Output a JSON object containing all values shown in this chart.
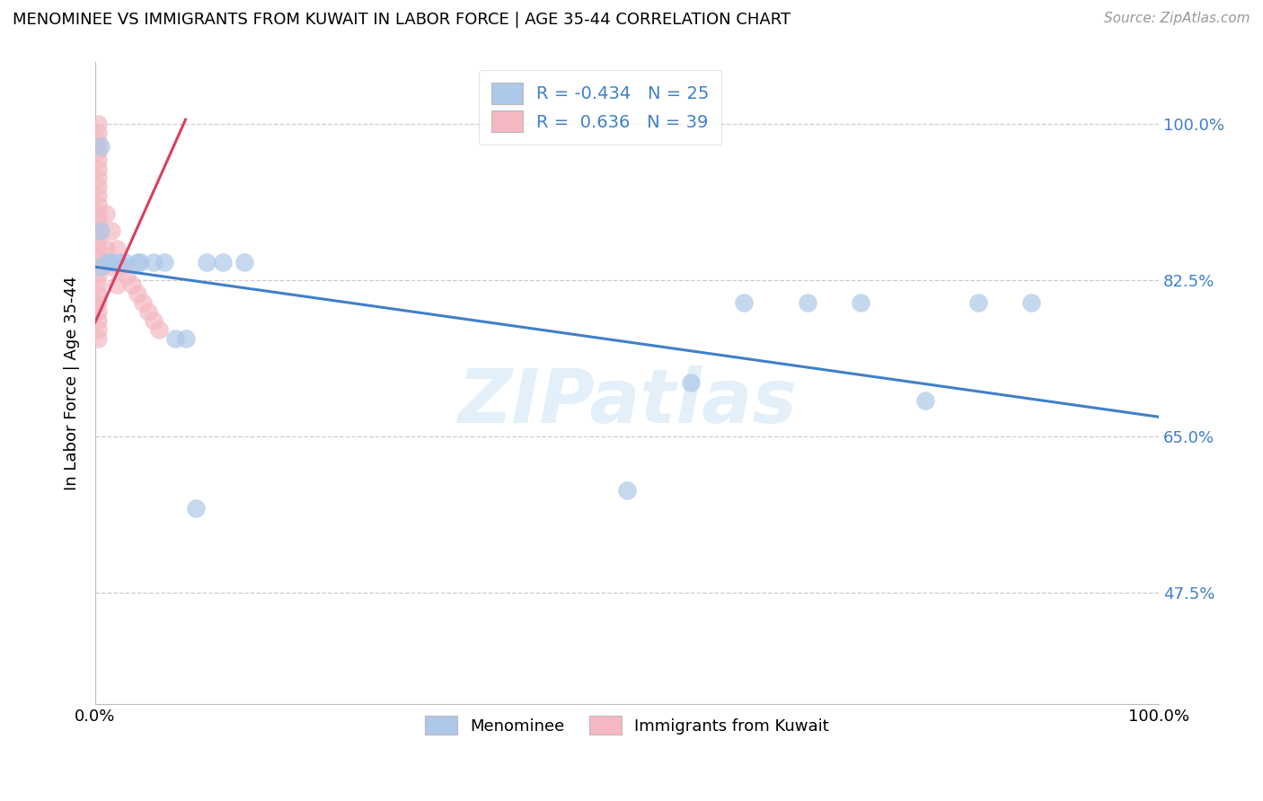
{
  "title": "MENOMINEE VS IMMIGRANTS FROM KUWAIT IN LABOR FORCE | AGE 35-44 CORRELATION CHART",
  "source_text": "Source: ZipAtlas.com",
  "ylabel": "In Labor Force | Age 35-44",
  "xlim": [
    0.0,
    1.0
  ],
  "ylim": [
    0.35,
    1.07
  ],
  "yticks": [
    0.475,
    0.65,
    0.825,
    1.0
  ],
  "ytick_labels": [
    "47.5%",
    "65.0%",
    "82.5%",
    "100.0%"
  ],
  "xticks": [
    0.0,
    1.0
  ],
  "xtick_labels": [
    "0.0%",
    "100.0%"
  ],
  "menominee_R": -0.434,
  "menominee_N": 25,
  "kuwait_R": 0.636,
  "kuwait_N": 39,
  "menominee_color": "#adc8e8",
  "menominee_edge_color": "#adc8e8",
  "menominee_line_color": "#4080c8",
  "kuwait_color": "#f5b8c2",
  "kuwait_edge_color": "#f5b8c2",
  "kuwait_line_color": "#d84060",
  "watermark": "ZIPatlas",
  "menominee_line_x0": 0.0,
  "menominee_line_x1": 1.0,
  "menominee_line_y0": 0.84,
  "menominee_line_y1": 0.672,
  "kuwait_line_x0": 0.0,
  "kuwait_line_x1": 0.085,
  "kuwait_line_y0": 0.778,
  "kuwait_line_y1": 1.005,
  "menominee_x": [
    0.005,
    0.005,
    0.005,
    0.012,
    0.015,
    0.022,
    0.028,
    0.04,
    0.042,
    0.055,
    0.065,
    0.075,
    0.085,
    0.095,
    0.105,
    0.12,
    0.14,
    0.5,
    0.56,
    0.61,
    0.67,
    0.72,
    0.78,
    0.83,
    0.88
  ],
  "menominee_y": [
    0.975,
    0.88,
    0.84,
    0.845,
    0.845,
    0.845,
    0.845,
    0.845,
    0.845,
    0.845,
    0.845,
    0.76,
    0.76,
    0.57,
    0.845,
    0.845,
    0.845,
    0.59,
    0.71,
    0.8,
    0.8,
    0.8,
    0.69,
    0.8,
    0.8
  ],
  "kuwait_x": [
    0.003,
    0.003,
    0.003,
    0.003,
    0.003,
    0.003,
    0.003,
    0.003,
    0.003,
    0.003,
    0.003,
    0.003,
    0.003,
    0.003,
    0.003,
    0.003,
    0.003,
    0.003,
    0.003,
    0.003,
    0.003,
    0.003,
    0.003,
    0.003,
    0.003,
    0.01,
    0.01,
    0.015,
    0.015,
    0.02,
    0.02,
    0.025,
    0.03,
    0.035,
    0.04,
    0.045,
    0.05,
    0.055,
    0.06
  ],
  "kuwait_y": [
    1.0,
    0.99,
    0.98,
    0.97,
    0.96,
    0.95,
    0.94,
    0.93,
    0.92,
    0.91,
    0.9,
    0.89,
    0.88,
    0.87,
    0.86,
    0.85,
    0.84,
    0.83,
    0.82,
    0.81,
    0.8,
    0.79,
    0.78,
    0.77,
    0.76,
    0.9,
    0.86,
    0.88,
    0.84,
    0.86,
    0.82,
    0.84,
    0.83,
    0.82,
    0.81,
    0.8,
    0.79,
    0.78,
    0.77
  ]
}
